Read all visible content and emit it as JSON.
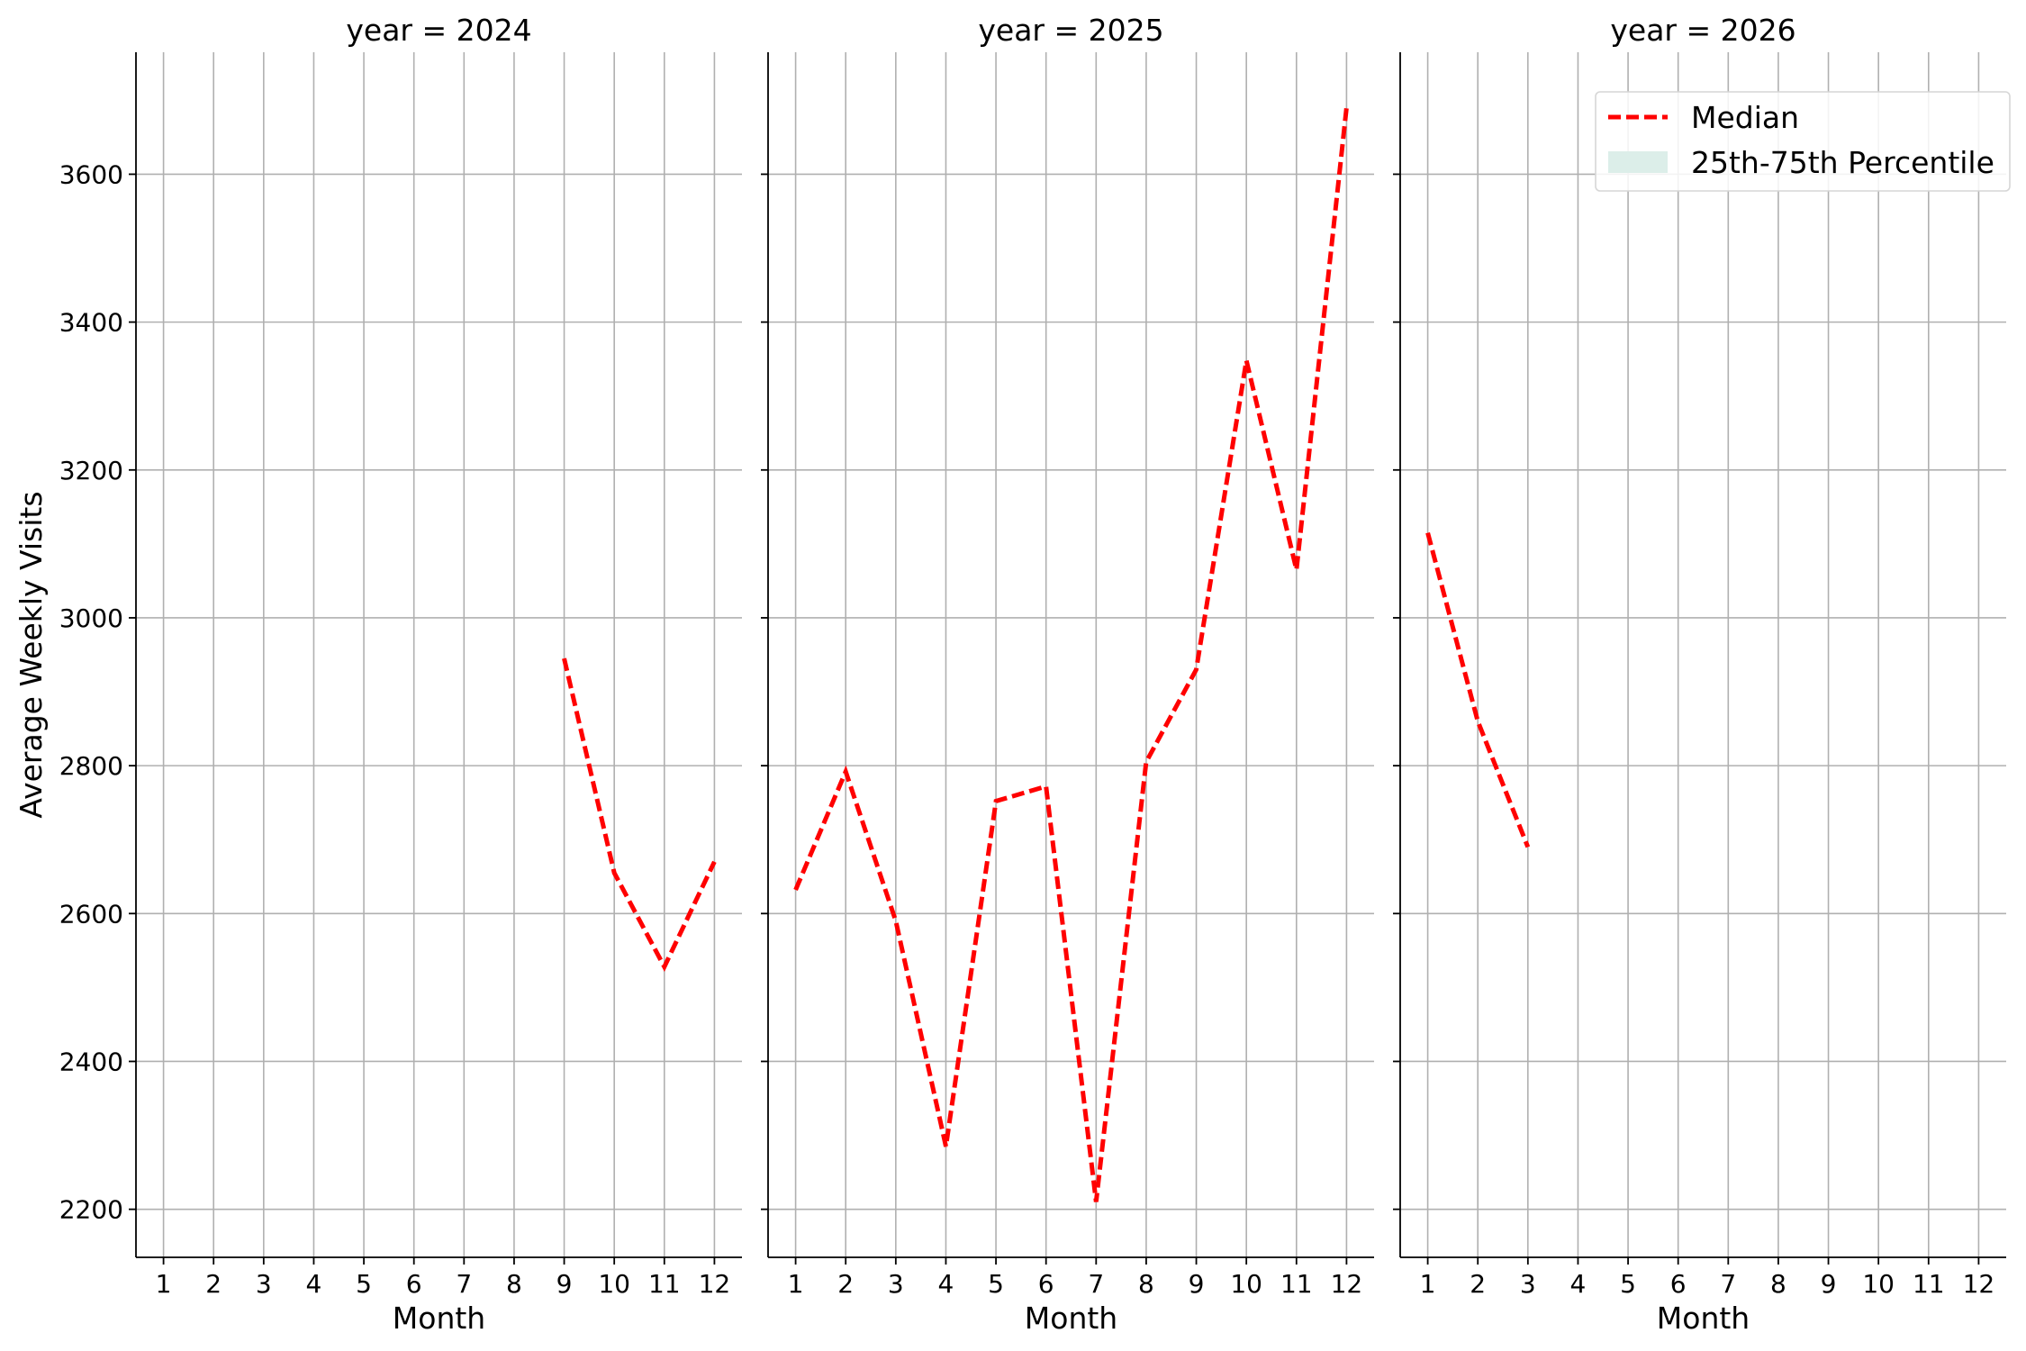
{
  "chart_data": {
    "type": "line",
    "layout": "facet-columns",
    "sharey": true,
    "ylabel": "Average Weekly Visits",
    "xlabel": "Month",
    "ylim": [
      2135,
      3765
    ],
    "yticks": [
      2200,
      2400,
      2600,
      2800,
      3000,
      3200,
      3400,
      3600
    ],
    "xlim": [
      0.45,
      12.55
    ],
    "xticks": [
      1,
      2,
      3,
      4,
      5,
      6,
      7,
      8,
      9,
      10,
      11,
      12
    ],
    "grid": true,
    "legend": {
      "placement": "upper-right of last panel",
      "entries": [
        {
          "label": "Median",
          "style": "dashed-line",
          "color": "#ff0000"
        },
        {
          "label": "25th-75th Percentile",
          "style": "filled-band",
          "color": "#dceee9"
        }
      ]
    },
    "series_color": "#ff0000",
    "band_color": "#dceee9",
    "panels": [
      {
        "title": "year = 2024",
        "series": [
          {
            "name": "Median",
            "x": [
              9,
              10,
              11,
              12
            ],
            "y": [
              2945,
              2655,
              2528,
              2670
            ]
          }
        ]
      },
      {
        "title": "year = 2025",
        "series": [
          {
            "name": "Median",
            "x": [
              1,
              2,
              3,
              4,
              5,
              6,
              7,
              8,
              9,
              10,
              11,
              12
            ],
            "y": [
              2632,
              2792,
              2590,
              2285,
              2752,
              2772,
              2210,
              2805,
              2930,
              3348,
              3065,
              3690
            ]
          }
        ]
      },
      {
        "title": "year = 2026",
        "series": [
          {
            "name": "Median",
            "x": [
              1,
              2,
              3
            ],
            "y": [
              3115,
              2860,
              2690
            ]
          }
        ]
      }
    ]
  }
}
